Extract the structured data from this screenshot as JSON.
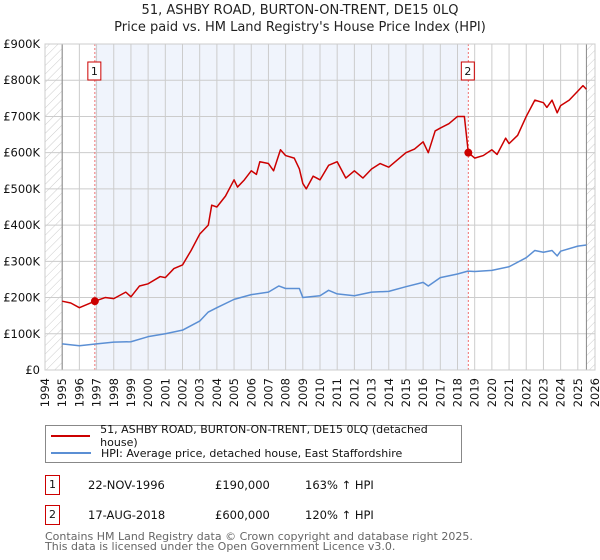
{
  "chart_data": {
    "type": "line",
    "title": "51, ASHBY ROAD, BURTON-ON-TRENT, DE15 0LQ",
    "subtitle": "Price paid vs. HM Land Registry's House Price Index (HPI)",
    "xlim": [
      1994,
      2026
    ],
    "ylim": [
      0,
      900000
    ],
    "x_ticks": [
      "1994",
      "1995",
      "1996",
      "1997",
      "1998",
      "1999",
      "2000",
      "2001",
      "2002",
      "2003",
      "2004",
      "2005",
      "2006",
      "2007",
      "2008",
      "2009",
      "2010",
      "2011",
      "2012",
      "2013",
      "2014",
      "2015",
      "2016",
      "2017",
      "2018",
      "2019",
      "2020",
      "2021",
      "2022",
      "2023",
      "2024",
      "2025",
      "2026"
    ],
    "y_ticks": [
      {
        "v": 0,
        "label": "£0"
      },
      {
        "v": 100000,
        "label": "£100K"
      },
      {
        "v": 200000,
        "label": "£200K"
      },
      {
        "v": 300000,
        "label": "£300K"
      },
      {
        "v": 400000,
        "label": "£400K"
      },
      {
        "v": 500000,
        "label": "£500K"
      },
      {
        "v": 600000,
        "label": "£600K"
      },
      {
        "v": 700000,
        "label": "£700K"
      },
      {
        "v": 800000,
        "label": "£800K"
      },
      {
        "v": 900000,
        "label": "£900K"
      }
    ],
    "grid": true,
    "data_range": [
      1995,
      2025.5
    ],
    "shaded_range": [
      1996.9,
      2018.63
    ],
    "series": [
      {
        "name": "51, ASHBY ROAD, BURTON-ON-TRENT, DE15 0LQ (detached house)",
        "color": "#cc0000",
        "x": [
          1995,
          1995.5,
          1996,
          1996.9,
          1997.5,
          1998,
          1998.7,
          1999,
          1999.5,
          2000,
          2000.7,
          2001,
          2001.5,
          2002,
          2002.5,
          2003,
          2003.5,
          2003.7,
          2004,
          2004.5,
          2005,
          2005.2,
          2005.6,
          2006,
          2006.3,
          2006.5,
          2007,
          2007.3,
          2007.7,
          2008,
          2008.5,
          2008.8,
          2009,
          2009.2,
          2009.6,
          2010,
          2010.5,
          2011,
          2011.5,
          2012,
          2012.5,
          2013,
          2013.5,
          2014,
          2014.5,
          2015,
          2015.5,
          2016,
          2016.3,
          2016.7,
          2017,
          2017.5,
          2018,
          2018.4,
          2018.63,
          2019,
          2019.5,
          2020,
          2020.3,
          2020.8,
          2021,
          2021.5,
          2022,
          2022.5,
          2023,
          2023.2,
          2023.5,
          2023.8,
          2024,
          2024.5,
          2025,
          2025.3,
          2025.5
        ],
        "y": [
          190000,
          185000,
          172000,
          190000,
          200000,
          197000,
          215000,
          202000,
          232000,
          238000,
          258000,
          255000,
          280000,
          290000,
          330000,
          375000,
          400000,
          455000,
          450000,
          480000,
          525000,
          505000,
          525000,
          550000,
          540000,
          575000,
          570000,
          550000,
          608000,
          592000,
          585000,
          555000,
          515000,
          500000,
          535000,
          525000,
          565000,
          575000,
          530000,
          550000,
          530000,
          555000,
          570000,
          560000,
          580000,
          600000,
          610000,
          630000,
          600000,
          660000,
          668000,
          680000,
          700000,
          700000,
          600000,
          585000,
          592000,
          608000,
          595000,
          640000,
          625000,
          648000,
          700000,
          745000,
          738000,
          725000,
          745000,
          710000,
          730000,
          745000,
          770000,
          785000,
          775000
        ]
      },
      {
        "name": "HPI: Average price, detached house, East Staffordshire",
        "color": "#5b8fd4",
        "x": [
          1995,
          1996,
          1997,
          1998,
          1999,
          2000,
          2001,
          2002,
          2003,
          2003.5,
          2004,
          2005,
          2006,
          2007,
          2007.6,
          2008,
          2008.8,
          2009,
          2010,
          2010.5,
          2011,
          2012,
          2013,
          2014,
          2015,
          2016,
          2016.3,
          2017,
          2018,
          2018.6,
          2019,
          2020,
          2021,
          2022,
          2022.5,
          2023,
          2023.5,
          2023.8,
          2024,
          2025,
          2025.5
        ],
        "y": [
          72000,
          67000,
          72000,
          77000,
          78000,
          92000,
          100000,
          110000,
          135000,
          160000,
          172000,
          195000,
          208000,
          215000,
          232000,
          225000,
          225000,
          200000,
          205000,
          220000,
          210000,
          205000,
          215000,
          217000,
          230000,
          242000,
          232000,
          255000,
          265000,
          273000,
          272000,
          275000,
          285000,
          310000,
          330000,
          325000,
          330000,
          315000,
          328000,
          342000,
          345000
        ]
      }
    ],
    "annotations": [
      {
        "id": "1",
        "x": 1996.9,
        "y": 190000,
        "date": "22-NOV-1996",
        "price": "£190,000",
        "hpi": "163% ↑ HPI"
      },
      {
        "id": "2",
        "x": 2018.63,
        "y": 600000,
        "date": "17-AUG-2018",
        "price": "£600,000",
        "hpi": "120% ↑ HPI"
      }
    ],
    "legend_placement": "bottom"
  },
  "footer": {
    "line1": "Contains HM Land Registry data © Crown copyright and database right 2025.",
    "line2": "This data is licensed under the Open Government Licence v3.0."
  }
}
